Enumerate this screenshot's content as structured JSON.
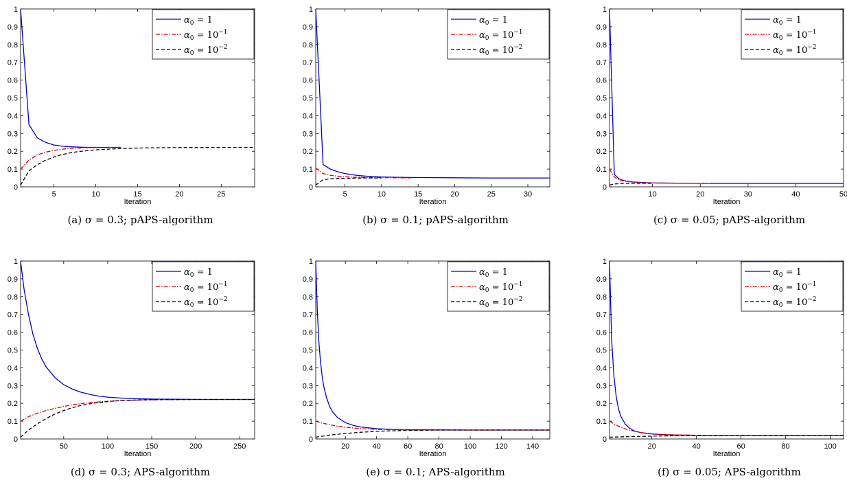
{
  "chart_data": [
    {
      "type": "line",
      "caption": "(a) σ = 0.3; pAPS-algorithm",
      "xlabel": "Iteration",
      "xlim": [
        1,
        29
      ],
      "ylim": [
        0,
        1
      ],
      "xticks": [
        5,
        10,
        15,
        20,
        25
      ],
      "yticks": [
        0,
        0.1,
        0.2,
        0.3,
        0.4,
        0.5,
        0.6,
        0.7,
        0.8,
        0.9,
        1
      ],
      "legend_position": "top-right",
      "series": [
        {
          "name": "α₀ = 1",
          "sub": "0",
          "rhs": "1",
          "exp": "",
          "color": "#0000cc",
          "dash": "",
          "x": [
            1,
            2,
            3,
            4,
            5,
            6,
            7,
            8,
            9,
            10,
            11,
            12,
            13
          ],
          "y": [
            1.0,
            0.35,
            0.275,
            0.25,
            0.235,
            0.228,
            0.225,
            0.223,
            0.222,
            0.222,
            0.222,
            0.222,
            0.222
          ]
        },
        {
          "name": "α₀ = 10⁻¹",
          "sub": "0",
          "rhs": "10",
          "exp": "−1",
          "color": "#dd0000",
          "dash": "6,2,1.5,2",
          "x": [
            1,
            2,
            3,
            4,
            5,
            6,
            7,
            8,
            9,
            10,
            11,
            12,
            13
          ],
          "y": [
            0.1,
            0.15,
            0.18,
            0.195,
            0.205,
            0.212,
            0.216,
            0.218,
            0.22,
            0.221,
            0.221,
            0.222,
            0.222
          ]
        },
        {
          "name": "α₀ = 10⁻²",
          "sub": "0",
          "rhs": "10",
          "exp": "−2",
          "color": "#000000",
          "dash": "5,3",
          "x": [
            1,
            2,
            3,
            4,
            5,
            6,
            7,
            8,
            10,
            12,
            14,
            16,
            18,
            20,
            22,
            24,
            26,
            29
          ],
          "y": [
            0.01,
            0.09,
            0.125,
            0.15,
            0.168,
            0.182,
            0.192,
            0.199,
            0.208,
            0.213,
            0.217,
            0.219,
            0.22,
            0.221,
            0.221,
            0.222,
            0.222,
            0.222
          ]
        }
      ]
    },
    {
      "type": "line",
      "caption": "(b) σ = 0.1; pAPS-algorithm",
      "xlabel": "Iteration",
      "xlim": [
        1,
        33
      ],
      "ylim": [
        0,
        1
      ],
      "xticks": [
        5,
        10,
        15,
        20,
        25,
        30
      ],
      "yticks": [
        0,
        0.1,
        0.2,
        0.3,
        0.4,
        0.5,
        0.6,
        0.7,
        0.8,
        0.9,
        1
      ],
      "legend_position": "top-right",
      "series": [
        {
          "name": "α₀ = 1",
          "sub": "0",
          "rhs": "1",
          "exp": "",
          "color": "#0000cc",
          "dash": "",
          "x": [
            1,
            2,
            3,
            4,
            5,
            6,
            7,
            8,
            10,
            12,
            15,
            20,
            25,
            30,
            33
          ],
          "y": [
            1.0,
            0.125,
            0.1,
            0.085,
            0.075,
            0.068,
            0.063,
            0.06,
            0.056,
            0.054,
            0.052,
            0.051,
            0.05,
            0.05,
            0.05
          ]
        },
        {
          "name": "α₀ = 10⁻¹",
          "sub": "0",
          "rhs": "10",
          "exp": "−1",
          "color": "#dd0000",
          "dash": "6,2,1.5,2",
          "x": [
            1,
            2,
            3,
            4,
            5,
            6,
            8,
            10,
            12,
            14
          ],
          "y": [
            0.105,
            0.075,
            0.065,
            0.06,
            0.057,
            0.055,
            0.053,
            0.052,
            0.051,
            0.05
          ]
        },
        {
          "name": "α₀ = 10⁻²",
          "sub": "0",
          "rhs": "10",
          "exp": "−2",
          "color": "#000000",
          "dash": "5,3",
          "x": [
            1,
            2,
            3,
            4,
            5,
            6,
            8,
            10
          ],
          "y": [
            0.01,
            0.04,
            0.045,
            0.047,
            0.048,
            0.049,
            0.05,
            0.05
          ]
        }
      ]
    },
    {
      "type": "line",
      "caption": "(c) σ = 0.05; pAPS-algorithm",
      "xlabel": "Iteration",
      "xlim": [
        1,
        50
      ],
      "ylim": [
        0,
        1
      ],
      "xticks": [
        10,
        20,
        30,
        40,
        50
      ],
      "yticks": [
        0,
        0.1,
        0.2,
        0.3,
        0.4,
        0.5,
        0.6,
        0.7,
        0.8,
        0.9,
        1
      ],
      "legend_position": "top-right",
      "series": [
        {
          "name": "α₀ = 1",
          "sub": "0",
          "rhs": "1",
          "exp": "",
          "color": "#0000cc",
          "dash": "",
          "x": [
            1,
            2,
            3,
            4,
            5,
            6,
            8,
            10,
            15,
            20,
            30,
            40,
            50
          ],
          "y": [
            1.0,
            0.07,
            0.045,
            0.035,
            0.03,
            0.027,
            0.024,
            0.022,
            0.021,
            0.02,
            0.02,
            0.02,
            0.02
          ]
        },
        {
          "name": "α₀ = 10⁻¹",
          "sub": "0",
          "rhs": "10",
          "exp": "−1",
          "color": "#dd0000",
          "dash": "6,2,1.5,2",
          "x": [
            1,
            2,
            3,
            4,
            5,
            6,
            8,
            10,
            15,
            22
          ],
          "y": [
            0.1,
            0.055,
            0.04,
            0.033,
            0.029,
            0.027,
            0.024,
            0.022,
            0.021,
            0.02
          ]
        },
        {
          "name": "α₀ = 10⁻²",
          "sub": "0",
          "rhs": "10",
          "exp": "−2",
          "color": "#000000",
          "dash": "5,3",
          "x": [
            1,
            2,
            3,
            4,
            6,
            8,
            10
          ],
          "y": [
            0.01,
            0.016,
            0.018,
            0.019,
            0.02,
            0.02,
            0.02
          ]
        }
      ]
    },
    {
      "type": "line",
      "caption": "(d) σ = 0.3; APS-algorithm",
      "xlabel": "Iteration",
      "xlim": [
        1,
        267
      ],
      "ylim": [
        0,
        1
      ],
      "xticks": [
        50,
        100,
        150,
        200,
        250
      ],
      "yticks": [
        0,
        0.1,
        0.2,
        0.3,
        0.4,
        0.5,
        0.6,
        0.7,
        0.8,
        0.9,
        1
      ],
      "legend_position": "top-right",
      "series": [
        {
          "name": "α₀ = 1",
          "sub": "0",
          "rhs": "1",
          "exp": "",
          "color": "#0000cc",
          "dash": "",
          "x": [
            1,
            5,
            10,
            15,
            20,
            25,
            30,
            40,
            50,
            60,
            70,
            80,
            90,
            100,
            120,
            140,
            160,
            180,
            200,
            230,
            267
          ],
          "y": [
            1.0,
            0.84,
            0.7,
            0.59,
            0.51,
            0.45,
            0.405,
            0.345,
            0.305,
            0.28,
            0.262,
            0.25,
            0.241,
            0.235,
            0.228,
            0.225,
            0.224,
            0.223,
            0.222,
            0.222,
            0.222
          ]
        },
        {
          "name": "α₀ = 10⁻¹",
          "sub": "0",
          "rhs": "10",
          "exp": "−1",
          "color": "#dd0000",
          "dash": "6,2,1.5,2",
          "x": [
            1,
            10,
            20,
            30,
            40,
            50,
            60,
            70,
            80,
            90,
            100,
            120,
            140,
            160,
            200,
            267
          ],
          "y": [
            0.1,
            0.125,
            0.145,
            0.16,
            0.172,
            0.183,
            0.192,
            0.199,
            0.204,
            0.208,
            0.212,
            0.217,
            0.219,
            0.221,
            0.222,
            0.222
          ]
        },
        {
          "name": "α₀ = 10⁻²",
          "sub": "0",
          "rhs": "10",
          "exp": "−2",
          "color": "#000000",
          "dash": "5,3",
          "x": [
            1,
            10,
            20,
            30,
            40,
            50,
            60,
            70,
            80,
            90,
            100,
            110,
            120,
            140,
            160,
            200,
            267
          ],
          "y": [
            0.01,
            0.05,
            0.085,
            0.115,
            0.14,
            0.16,
            0.176,
            0.189,
            0.198,
            0.205,
            0.21,
            0.214,
            0.217,
            0.22,
            0.221,
            0.222,
            0.222
          ]
        }
      ]
    },
    {
      "type": "line",
      "caption": "(e) σ = 0.1; APS-algorithm",
      "xlabel": "Iteration",
      "xlim": [
        1,
        151
      ],
      "ylim": [
        0,
        1
      ],
      "xticks": [
        20,
        40,
        60,
        80,
        100,
        120,
        140
      ],
      "yticks": [
        0,
        0.1,
        0.2,
        0.3,
        0.4,
        0.5,
        0.6,
        0.7,
        0.8,
        0.9,
        1
      ],
      "legend_position": "top-right",
      "series": [
        {
          "name": "α₀ = 1",
          "sub": "0",
          "rhs": "1",
          "exp": "",
          "color": "#0000cc",
          "dash": "",
          "x": [
            1,
            2,
            3,
            4,
            5,
            6,
            8,
            10,
            12,
            15,
            20,
            25,
            30,
            40,
            50,
            60,
            80,
            100,
            120,
            151
          ],
          "y": [
            1.0,
            0.72,
            0.55,
            0.44,
            0.36,
            0.3,
            0.23,
            0.18,
            0.15,
            0.12,
            0.092,
            0.076,
            0.067,
            0.058,
            0.054,
            0.052,
            0.051,
            0.05,
            0.05,
            0.05
          ]
        },
        {
          "name": "α₀ = 10⁻¹",
          "sub": "0",
          "rhs": "10",
          "exp": "−1",
          "color": "#dd0000",
          "dash": "6,2,1.5,2",
          "x": [
            1,
            5,
            10,
            15,
            20,
            30,
            40,
            50,
            60,
            80,
            100,
            151
          ],
          "y": [
            0.1,
            0.09,
            0.08,
            0.072,
            0.066,
            0.058,
            0.054,
            0.052,
            0.051,
            0.05,
            0.05,
            0.05
          ]
        },
        {
          "name": "α₀ = 10⁻²",
          "sub": "0",
          "rhs": "10",
          "exp": "−2",
          "color": "#000000",
          "dash": "5,3",
          "x": [
            1,
            10,
            20,
            30,
            40,
            50,
            60,
            70,
            80,
            100,
            151
          ],
          "y": [
            0.01,
            0.022,
            0.031,
            0.038,
            0.043,
            0.046,
            0.048,
            0.049,
            0.05,
            0.05,
            0.05
          ]
        }
      ]
    },
    {
      "type": "line",
      "caption": "(f) σ = 0.05; APS-algorithm",
      "xlabel": "Iteration",
      "xlim": [
        1,
        106
      ],
      "ylim": [
        0,
        1
      ],
      "xticks": [
        20,
        40,
        60,
        80,
        100
      ],
      "yticks": [
        0,
        0.1,
        0.2,
        0.3,
        0.4,
        0.5,
        0.6,
        0.7,
        0.8,
        0.9,
        1
      ],
      "legend_position": "top-right",
      "series": [
        {
          "name": "α₀ = 1",
          "sub": "0",
          "rhs": "1",
          "exp": "",
          "color": "#0000cc",
          "dash": "",
          "x": [
            1,
            2,
            3,
            4,
            5,
            6,
            8,
            10,
            12,
            15,
            20,
            25,
            30,
            40,
            60,
            80,
            106
          ],
          "y": [
            1.0,
            0.55,
            0.35,
            0.24,
            0.17,
            0.13,
            0.085,
            0.06,
            0.046,
            0.036,
            0.028,
            0.024,
            0.022,
            0.021,
            0.02,
            0.02,
            0.02
          ]
        },
        {
          "name": "α₀ = 10⁻¹",
          "sub": "0",
          "rhs": "10",
          "exp": "−1",
          "color": "#dd0000",
          "dash": "6,2,1.5,2",
          "x": [
            1,
            3,
            5,
            8,
            10,
            15,
            20,
            25,
            30,
            40,
            60,
            106
          ],
          "y": [
            0.1,
            0.085,
            0.072,
            0.057,
            0.049,
            0.036,
            0.029,
            0.025,
            0.023,
            0.021,
            0.02,
            0.02
          ]
        },
        {
          "name": "α₀ = 10⁻²",
          "sub": "0",
          "rhs": "10",
          "exp": "−2",
          "color": "#000000",
          "dash": "5,3",
          "x": [
            1,
            10,
            20,
            30,
            40,
            60,
            106
          ],
          "y": [
            0.01,
            0.013,
            0.016,
            0.018,
            0.019,
            0.02,
            0.02
          ]
        }
      ]
    }
  ]
}
